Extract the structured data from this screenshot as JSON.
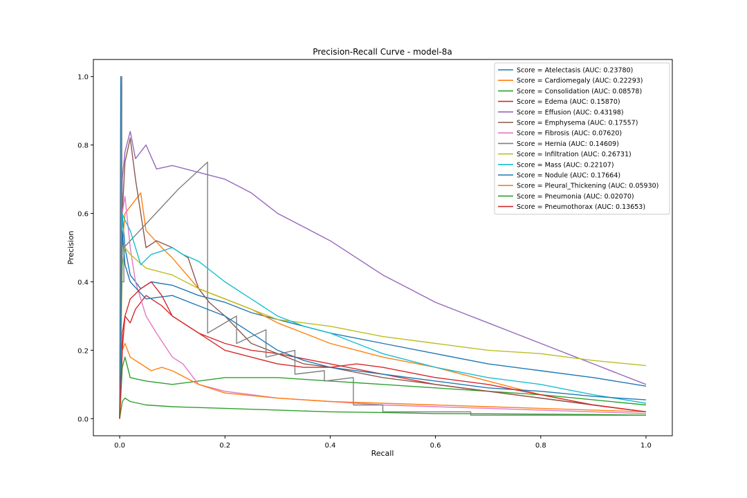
{
  "chart_data": {
    "type": "line",
    "title": "Precision-Recall Curve - model-8a",
    "xlabel": "Recall",
    "ylabel": "Precision",
    "xlim": [
      -0.05,
      1.05
    ],
    "ylim": [
      -0.05,
      1.05
    ],
    "xticks": [
      "0.0",
      "0.2",
      "0.4",
      "0.6",
      "0.8",
      "1.0"
    ],
    "yticks": [
      "0.0",
      "0.2",
      "0.4",
      "0.6",
      "0.8",
      "1.0"
    ],
    "grid": false,
    "legend_position": "top-right",
    "series": [
      {
        "name": "Score = Atelectasis (AUC: 0.23780)",
        "color": "#1f77b4",
        "x": [
          0,
          0.002,
          0.005,
          0.01,
          0.02,
          0.04,
          0.06,
          0.1,
          0.15,
          0.2,
          0.25,
          0.3,
          0.35,
          0.4,
          0.5,
          0.6,
          0.7,
          0.8,
          0.9,
          1.0
        ],
        "y": [
          0,
          1.0,
          0.6,
          0.5,
          0.42,
          0.38,
          0.4,
          0.39,
          0.36,
          0.34,
          0.31,
          0.29,
          0.27,
          0.25,
          0.22,
          0.19,
          0.16,
          0.14,
          0.12,
          0.095
        ]
      },
      {
        "name": "Score = Cardiomegaly (AUC: 0.22293)",
        "color": "#ff7f0e",
        "x": [
          0,
          0.005,
          0.01,
          0.02,
          0.04,
          0.05,
          0.08,
          0.1,
          0.15,
          0.2,
          0.25,
          0.3,
          0.35,
          0.4,
          0.5,
          0.6,
          0.7,
          0.8,
          0.9,
          1.0
        ],
        "y": [
          0,
          0.5,
          0.6,
          0.62,
          0.66,
          0.55,
          0.5,
          0.47,
          0.38,
          0.35,
          0.32,
          0.28,
          0.25,
          0.22,
          0.18,
          0.15,
          0.11,
          0.07,
          0.04,
          0.02
        ]
      },
      {
        "name": "Score = Consolidation (AUC: 0.08578)",
        "color": "#2ca02c",
        "x": [
          0,
          0.005,
          0.01,
          0.02,
          0.05,
          0.1,
          0.15,
          0.2,
          0.3,
          0.4,
          0.5,
          0.6,
          0.7,
          0.8,
          0.9,
          1.0
        ],
        "y": [
          0,
          0.15,
          0.18,
          0.12,
          0.11,
          0.1,
          0.11,
          0.12,
          0.12,
          0.11,
          0.1,
          0.09,
          0.08,
          0.07,
          0.055,
          0.04
        ]
      },
      {
        "name": "Score = Edema (AUC: 0.15870)",
        "color": "#d62728",
        "x": [
          0,
          0.005,
          0.01,
          0.02,
          0.03,
          0.05,
          0.08,
          0.1,
          0.15,
          0.2,
          0.25,
          0.3,
          0.4,
          0.5,
          0.6,
          0.7,
          0.8,
          0.9,
          1.0
        ],
        "y": [
          0,
          0.25,
          0.3,
          0.28,
          0.32,
          0.36,
          0.33,
          0.3,
          0.25,
          0.22,
          0.2,
          0.19,
          0.16,
          0.13,
          0.1,
          0.08,
          0.06,
          0.04,
          0.02
        ]
      },
      {
        "name": "Score = Effusion (AUC: 0.43198)",
        "color": "#9467bd",
        "x": [
          0,
          0.005,
          0.01,
          0.02,
          0.03,
          0.05,
          0.07,
          0.1,
          0.15,
          0.2,
          0.25,
          0.3,
          0.35,
          0.4,
          0.45,
          0.5,
          0.55,
          0.6,
          0.65,
          0.7,
          0.75,
          0.8,
          0.85,
          0.9,
          0.95,
          1.0
        ],
        "y": [
          0,
          0.7,
          0.78,
          0.84,
          0.76,
          0.8,
          0.73,
          0.74,
          0.72,
          0.7,
          0.66,
          0.6,
          0.56,
          0.52,
          0.47,
          0.42,
          0.38,
          0.34,
          0.31,
          0.28,
          0.25,
          0.22,
          0.19,
          0.16,
          0.13,
          0.1
        ]
      },
      {
        "name": "Score = Emphysema (AUC: 0.17557)",
        "color": "#8c564b",
        "x": [
          0,
          0.005,
          0.01,
          0.02,
          0.03,
          0.05,
          0.07,
          0.1,
          0.13,
          0.15,
          0.17,
          0.2,
          0.25,
          0.3,
          0.35,
          0.4,
          0.5,
          0.6,
          0.7,
          0.8,
          0.9,
          1.0
        ],
        "y": [
          0,
          0.6,
          0.75,
          0.82,
          0.7,
          0.5,
          0.52,
          0.5,
          0.47,
          0.38,
          0.34,
          0.3,
          0.22,
          0.19,
          0.16,
          0.15,
          0.12,
          0.1,
          0.08,
          0.06,
          0.04,
          0.02
        ]
      },
      {
        "name": "Score = Fibrosis (AUC: 0.07620)",
        "color": "#e377c2",
        "x": [
          0,
          0.005,
          0.01,
          0.02,
          0.03,
          0.04,
          0.05,
          0.07,
          0.1,
          0.12,
          0.15,
          0.2,
          0.3,
          0.4,
          0.5,
          0.6,
          0.7,
          0.8,
          0.9,
          1.0
        ],
        "y": [
          0,
          0.6,
          0.65,
          0.5,
          0.4,
          0.35,
          0.3,
          0.25,
          0.18,
          0.16,
          0.1,
          0.08,
          0.06,
          0.05,
          0.04,
          0.035,
          0.03,
          0.025,
          0.02,
          0.015
        ]
      },
      {
        "name": "Score = Hernia (AUC: 0.14609)",
        "color": "#7f7f7f",
        "x": [
          0,
          0.004,
          0.004,
          0.008,
          0.008,
          0.111,
          0.167,
          0.167,
          0.222,
          0.222,
          0.278,
          0.278,
          0.333,
          0.333,
          0.389,
          0.389,
          0.444,
          0.444,
          0.5,
          0.5,
          0.667,
          0.667,
          1.0
        ],
        "y": [
          0,
          1.0,
          0.4,
          0.4,
          0.5,
          0.67,
          0.75,
          0.25,
          0.3,
          0.22,
          0.26,
          0.18,
          0.2,
          0.13,
          0.14,
          0.11,
          0.12,
          0.04,
          0.04,
          0.02,
          0.02,
          0.01,
          0.01
        ]
      },
      {
        "name": "Score = Infiltration (AUC: 0.26731)",
        "color": "#bcbd22",
        "x": [
          0,
          0.005,
          0.01,
          0.02,
          0.05,
          0.1,
          0.15,
          0.2,
          0.25,
          0.3,
          0.35,
          0.4,
          0.5,
          0.6,
          0.7,
          0.8,
          0.9,
          1.0
        ],
        "y": [
          0,
          0.45,
          0.5,
          0.48,
          0.44,
          0.42,
          0.38,
          0.35,
          0.32,
          0.29,
          0.28,
          0.27,
          0.24,
          0.22,
          0.2,
          0.19,
          0.17,
          0.155
        ]
      },
      {
        "name": "Score = Mass (AUC: 0.22107)",
        "color": "#17becf",
        "x": [
          0,
          0.005,
          0.01,
          0.02,
          0.04,
          0.06,
          0.08,
          0.1,
          0.12,
          0.15,
          0.2,
          0.25,
          0.3,
          0.35,
          0.4,
          0.45,
          0.5,
          0.55,
          0.6,
          0.7,
          0.8,
          0.9,
          1.0
        ],
        "y": [
          0,
          0.6,
          0.58,
          0.55,
          0.45,
          0.48,
          0.49,
          0.5,
          0.48,
          0.46,
          0.4,
          0.35,
          0.3,
          0.27,
          0.25,
          0.22,
          0.19,
          0.17,
          0.15,
          0.12,
          0.1,
          0.07,
          0.045
        ]
      },
      {
        "name": "Score = Nodule (AUC: 0.17664)",
        "color": "#1f77b4",
        "x": [
          0,
          0.005,
          0.01,
          0.02,
          0.05,
          0.1,
          0.15,
          0.2,
          0.25,
          0.3,
          0.35,
          0.4,
          0.5,
          0.6,
          0.7,
          0.8,
          0.9,
          1.0
        ],
        "y": [
          0,
          0.55,
          0.45,
          0.4,
          0.35,
          0.36,
          0.33,
          0.3,
          0.25,
          0.2,
          0.17,
          0.15,
          0.13,
          0.11,
          0.09,
          0.08,
          0.065,
          0.055
        ]
      },
      {
        "name": "Score = Pleural_Thickening (AUC: 0.05930)",
        "color": "#ff7f0e",
        "x": [
          0,
          0.005,
          0.01,
          0.02,
          0.04,
          0.06,
          0.08,
          0.1,
          0.15,
          0.2,
          0.3,
          0.4,
          0.5,
          0.6,
          0.7,
          0.8,
          0.9,
          1.0
        ],
        "y": [
          0,
          0.2,
          0.22,
          0.18,
          0.16,
          0.14,
          0.15,
          0.14,
          0.1,
          0.075,
          0.06,
          0.05,
          0.045,
          0.04,
          0.035,
          0.03,
          0.025,
          0.02
        ]
      },
      {
        "name": "Score = Pneumonia (AUC: 0.02070)",
        "color": "#2ca02c",
        "x": [
          0,
          0.005,
          0.01,
          0.02,
          0.05,
          0.1,
          0.2,
          0.3,
          0.4,
          0.5,
          0.6,
          0.7,
          0.8,
          0.9,
          1.0
        ],
        "y": [
          0,
          0.05,
          0.06,
          0.05,
          0.04,
          0.035,
          0.03,
          0.025,
          0.02,
          0.018,
          0.015,
          0.014,
          0.013,
          0.012,
          0.01
        ]
      },
      {
        "name": "Score = Pneumothorax (AUC: 0.13653)",
        "color": "#d62728",
        "x": [
          0,
          0.005,
          0.01,
          0.02,
          0.04,
          0.06,
          0.08,
          0.1,
          0.15,
          0.2,
          0.25,
          0.3,
          0.35,
          0.4,
          0.45,
          0.5,
          0.6,
          0.7,
          0.8,
          0.9,
          1.0
        ],
        "y": [
          0,
          0.2,
          0.3,
          0.35,
          0.38,
          0.4,
          0.36,
          0.3,
          0.25,
          0.2,
          0.18,
          0.16,
          0.15,
          0.15,
          0.16,
          0.15,
          0.12,
          0.1,
          0.07,
          0.04,
          0.02
        ]
      }
    ]
  }
}
